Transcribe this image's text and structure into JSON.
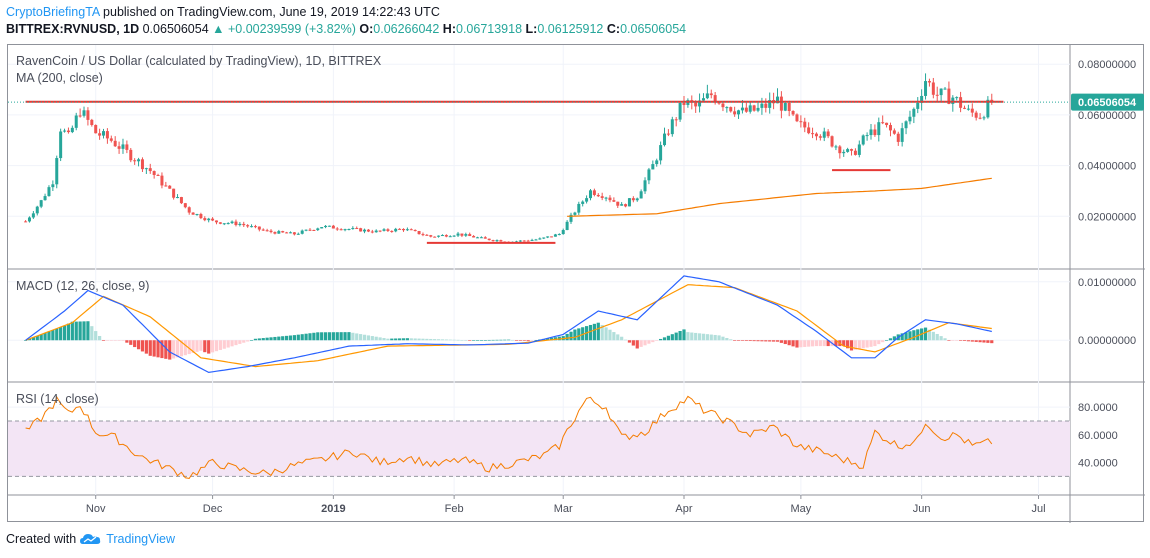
{
  "header": {
    "author": "CryptoBriefingTA",
    "published": "published on TradingView.com, June 19, 2019 14:22:43 UTC",
    "ticker": "BITTREX:RVNUSD, 1D",
    "last": "0.06506054",
    "arrow": "▲",
    "change": "+0.00239599 (+3.82%)",
    "o_label": "O:",
    "o": "0.06266042",
    "h_label": "H:",
    "h": "0.06713918",
    "l_label": "L:",
    "l": "0.06125912",
    "c_label": "C:",
    "c": "0.06506054"
  },
  "footer": {
    "created_with": "Created with",
    "brand": "TradingView",
    "logo_icon": "tradingview-cloud-icon"
  },
  "colors": {
    "up": "#26a69a",
    "down": "#ef5350",
    "ma": "#f57c00",
    "macd": "#2962ff",
    "signal": "#ff9800",
    "rsi": "#f57c00",
    "hist_up_strong": "#26a69a",
    "hist_up_weak": "#b2dfdb",
    "hist_down_strong": "#ef5350",
    "hist_down_weak": "#ffcdd2",
    "level": "#e53935",
    "rsi_band": "#f3e5f5",
    "price_tag": "#26a69a"
  },
  "chart_data": [
    {
      "type": "candlestick",
      "title": "RavenCoin / US Dollar (calculated by TradingView), 1D, BITTREX",
      "indicator_label": "MA (200, close)",
      "y_ticks": [
        "0.08000000",
        "0.06000000",
        "0.04000000",
        "0.02000000"
      ],
      "y_range": [
        0.0,
        0.086
      ],
      "last_price_label": "0.06506054",
      "x_ticks": [
        "Nov",
        "Dec",
        "2019",
        "Feb",
        "Mar",
        "Apr",
        "May",
        "Jun",
        "Jul"
      ],
      "close_keypoints": [
        [
          "2018-10-14",
          0.018
        ],
        [
          "2018-10-18",
          0.026
        ],
        [
          "2018-10-21",
          0.034
        ],
        [
          "2018-10-23",
          0.055
        ],
        [
          "2018-10-25",
          0.051
        ],
        [
          "2018-10-28",
          0.062
        ],
        [
          "2018-11-01",
          0.053
        ],
        [
          "2018-11-05",
          0.05
        ],
        [
          "2018-11-10",
          0.044
        ],
        [
          "2018-11-15",
          0.038
        ],
        [
          "2018-11-20",
          0.03
        ],
        [
          "2018-11-25",
          0.022
        ],
        [
          "2018-12-01",
          0.018
        ],
        [
          "2018-12-08",
          0.017
        ],
        [
          "2018-12-15",
          0.014
        ],
        [
          "2018-12-22",
          0.013
        ],
        [
          "2018-12-29",
          0.016
        ],
        [
          "2019-01-05",
          0.015
        ],
        [
          "2019-01-12",
          0.014
        ],
        [
          "2019-01-19",
          0.015
        ],
        [
          "2019-01-26",
          0.012
        ],
        [
          "2019-02-02",
          0.013
        ],
        [
          "2019-02-09",
          0.011
        ],
        [
          "2019-02-16",
          0.01
        ],
        [
          "2019-02-23",
          0.011
        ],
        [
          "2019-02-28",
          0.013
        ],
        [
          "2019-03-04",
          0.022
        ],
        [
          "2019-03-08",
          0.03
        ],
        [
          "2019-03-12",
          0.028
        ],
        [
          "2019-03-16",
          0.024
        ],
        [
          "2019-03-20",
          0.028
        ],
        [
          "2019-03-24",
          0.04
        ],
        [
          "2019-03-28",
          0.054
        ],
        [
          "2019-04-01",
          0.065
        ],
        [
          "2019-04-04",
          0.063
        ],
        [
          "2019-04-08",
          0.068
        ],
        [
          "2019-04-12",
          0.064
        ],
        [
          "2019-04-16",
          0.061
        ],
        [
          "2019-04-20",
          0.062
        ],
        [
          "2019-04-25",
          0.066
        ],
        [
          "2019-04-30",
          0.056
        ],
        [
          "2019-05-05",
          0.054
        ],
        [
          "2019-05-10",
          0.048
        ],
        [
          "2019-05-14",
          0.044
        ],
        [
          "2019-05-18",
          0.052
        ],
        [
          "2019-05-22",
          0.056
        ],
        [
          "2019-05-26",
          0.051
        ],
        [
          "2019-05-30",
          0.062
        ],
        [
          "2019-06-02",
          0.074
        ],
        [
          "2019-06-05",
          0.068
        ],
        [
          "2019-06-09",
          0.067
        ],
        [
          "2019-06-13",
          0.061
        ],
        [
          "2019-06-16",
          0.06
        ],
        [
          "2019-06-19",
          0.065
        ]
      ],
      "ma_keypoints": [
        [
          "2019-03-02",
          0.02
        ],
        [
          "2019-03-25",
          0.021
        ],
        [
          "2019-04-10",
          0.025
        ],
        [
          "2019-05-05",
          0.029
        ],
        [
          "2019-05-20",
          0.03
        ],
        [
          "2019-06-01",
          0.031
        ],
        [
          "2019-06-19",
          0.035
        ]
      ],
      "levels": [
        {
          "price": 0.0652,
          "from": "2018-10-14",
          "to": "2019-06-22",
          "color": "#e53935"
        },
        {
          "price": 0.0095,
          "from": "2019-01-25",
          "to": "2019-02-27",
          "color": "#e53935"
        },
        {
          "price": 0.0382,
          "from": "2019-05-09",
          "to": "2019-05-24",
          "color": "#e53935"
        }
      ]
    },
    {
      "type": "macd",
      "title": "MACD (12, 26, close, 9)",
      "y_ticks": [
        "0.01000000",
        "0.00000000"
      ],
      "y_range": [
        -0.0068,
        0.0115
      ],
      "macd_keypoints": [
        [
          "2018-10-14",
          0.0
        ],
        [
          "2018-10-24",
          0.005
        ],
        [
          "2018-10-30",
          0.0085
        ],
        [
          "2018-11-08",
          0.006
        ],
        [
          "2018-11-20",
          -0.002
        ],
        [
          "2018-11-30",
          -0.0055
        ],
        [
          "2018-12-10",
          -0.0045
        ],
        [
          "2018-12-22",
          -0.003
        ],
        [
          "2019-01-05",
          -0.001
        ],
        [
          "2019-01-20",
          -0.0006
        ],
        [
          "2019-02-05",
          -0.0008
        ],
        [
          "2019-02-20",
          -0.0005
        ],
        [
          "2019-03-01",
          0.001
        ],
        [
          "2019-03-10",
          0.005
        ],
        [
          "2019-03-20",
          0.0035
        ],
        [
          "2019-04-01",
          0.011
        ],
        [
          "2019-04-10",
          0.01
        ],
        [
          "2019-04-25",
          0.006
        ],
        [
          "2019-05-05",
          0.0015
        ],
        [
          "2019-05-14",
          -0.003
        ],
        [
          "2019-05-20",
          -0.003
        ],
        [
          "2019-05-26",
          0.0005
        ],
        [
          "2019-06-02",
          0.0035
        ],
        [
          "2019-06-10",
          0.0028
        ],
        [
          "2019-06-19",
          0.0015
        ]
      ],
      "signal_keypoints": [
        [
          "2018-10-14",
          0.0
        ],
        [
          "2018-10-26",
          0.003
        ],
        [
          "2018-11-03",
          0.0075
        ],
        [
          "2018-11-15",
          0.004
        ],
        [
          "2018-11-28",
          -0.003
        ],
        [
          "2018-12-12",
          -0.0045
        ],
        [
          "2018-12-28",
          -0.0035
        ],
        [
          "2019-01-15",
          -0.001
        ],
        [
          "2019-02-15",
          -0.0007
        ],
        [
          "2019-03-04",
          0.0005
        ],
        [
          "2019-03-16",
          0.0035
        ],
        [
          "2019-04-02",
          0.0095
        ],
        [
          "2019-04-14",
          0.009
        ],
        [
          "2019-04-30",
          0.005
        ],
        [
          "2019-05-12",
          -0.001
        ],
        [
          "2019-05-20",
          -0.002
        ],
        [
          "2019-05-30",
          0.0005
        ],
        [
          "2019-06-08",
          0.003
        ],
        [
          "2019-06-19",
          0.002
        ]
      ]
    },
    {
      "type": "rsi",
      "title": "RSI (14, close)",
      "y_ticks": [
        "80.0000",
        "60.0000",
        "40.0000"
      ],
      "y_range": [
        18,
        96
      ],
      "band": [
        30,
        70
      ],
      "rsi_keypoints": [
        [
          "2018-10-14",
          62
        ],
        [
          "2018-10-18",
          72
        ],
        [
          "2018-10-22",
          85
        ],
        [
          "2018-10-25",
          75
        ],
        [
          "2018-10-28",
          82
        ],
        [
          "2018-11-01",
          62
        ],
        [
          "2018-11-06",
          58
        ],
        [
          "2018-11-12",
          45
        ],
        [
          "2018-11-18",
          38
        ],
        [
          "2018-11-25",
          30
        ],
        [
          "2018-12-01",
          40
        ],
        [
          "2018-12-08",
          35
        ],
        [
          "2018-12-15",
          32
        ],
        [
          "2018-12-22",
          38
        ],
        [
          "2018-12-29",
          42
        ],
        [
          "2019-01-06",
          48
        ],
        [
          "2019-01-13",
          40
        ],
        [
          "2019-01-20",
          44
        ],
        [
          "2019-01-27",
          38
        ],
        [
          "2019-02-03",
          42
        ],
        [
          "2019-02-10",
          36
        ],
        [
          "2019-02-17",
          40
        ],
        [
          "2019-02-24",
          45
        ],
        [
          "2019-02-28",
          52
        ],
        [
          "2019-03-03",
          68
        ],
        [
          "2019-03-07",
          86
        ],
        [
          "2019-03-12",
          80
        ],
        [
          "2019-03-16",
          58
        ],
        [
          "2019-03-22",
          62
        ],
        [
          "2019-03-28",
          78
        ],
        [
          "2019-04-02",
          86
        ],
        [
          "2019-04-06",
          78
        ],
        [
          "2019-04-12",
          70
        ],
        [
          "2019-04-18",
          60
        ],
        [
          "2019-04-24",
          66
        ],
        [
          "2019-04-30",
          52
        ],
        [
          "2019-05-06",
          48
        ],
        [
          "2019-05-12",
          42
        ],
        [
          "2019-05-17",
          38
        ],
        [
          "2019-05-20",
          62
        ],
        [
          "2019-05-26",
          52
        ],
        [
          "2019-05-31",
          56
        ],
        [
          "2019-06-02",
          70
        ],
        [
          "2019-06-06",
          58
        ],
        [
          "2019-06-10",
          60
        ],
        [
          "2019-06-14",
          52
        ],
        [
          "2019-06-19",
          55
        ]
      ]
    }
  ]
}
